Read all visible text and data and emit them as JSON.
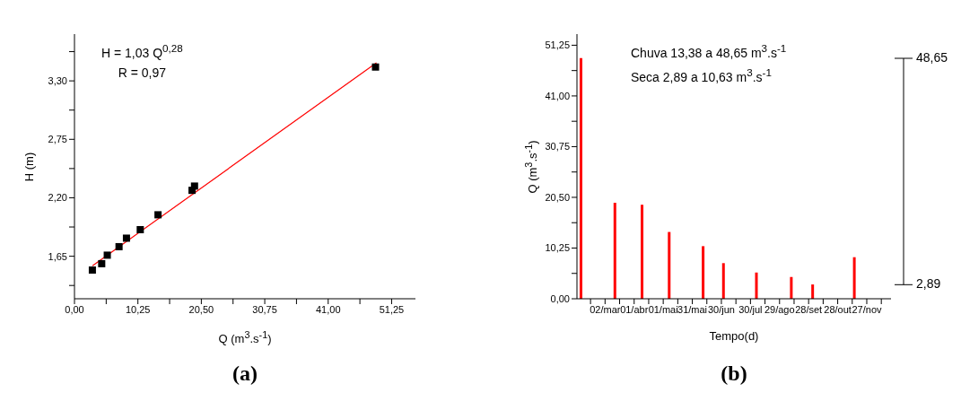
{
  "chart_data": [
    {
      "type": "scatter",
      "title": "(a)",
      "xlabel": "Q (m$^{3}$.s$^{-1}$)",
      "ylabel": "H (m)",
      "annotations": [
        "H = 1,03 Q$^{0,28}$",
        "R = 0,97"
      ],
      "series": [
        {
          "marker": "square",
          "color": "#000000",
          "x": [
            2.89,
            4.4,
            5.3,
            7.2,
            8.4,
            10.63,
            13.5,
            19.0,
            19.4,
            48.65
          ],
          "values": [
            1.52,
            1.58,
            1.66,
            1.74,
            1.82,
            1.9,
            2.04,
            2.27,
            2.31,
            3.43
          ]
        },
        {
          "type": "line",
          "color": "#ff0000",
          "x": [
            2.91,
            48.8
          ],
          "values": [
            1.56,
            3.47
          ]
        }
      ],
      "xlim": [
        0,
        55.1
      ],
      "ylim": [
        1.25,
        3.74
      ],
      "xticks": [
        {
          "value": 0,
          "label": "0,00"
        },
        {
          "value": 5.125,
          "label": null
        },
        {
          "value": 10.25,
          "label": "10,25"
        },
        {
          "value": 15.375,
          "label": null
        },
        {
          "value": 20.5,
          "label": "20,50"
        },
        {
          "value": 25.625,
          "label": null
        },
        {
          "value": 30.75,
          "label": "30,75"
        },
        {
          "value": 35.875,
          "label": null
        },
        {
          "value": 41,
          "label": "41,00"
        },
        {
          "value": 46.125,
          "label": null
        },
        {
          "value": 51.25,
          "label": "51,25"
        }
      ],
      "yticks": [
        {
          "value": 1.375,
          "label": null
        },
        {
          "value": 1.65,
          "label": "1,65"
        },
        {
          "value": 1.925,
          "label": null
        },
        {
          "value": 2.2,
          "label": "2,20"
        },
        {
          "value": 2.475,
          "label": null
        },
        {
          "value": 2.75,
          "label": "2,75"
        },
        {
          "value": 3.025,
          "label": null
        },
        {
          "value": 3.3,
          "label": "3,30"
        },
        {
          "value": 3.575,
          "label": null
        }
      ]
    },
    {
      "type": "bar",
      "title": "(b)",
      "xlabel": "Tempo(d)",
      "ylabel": "Q (m$^{3}$.s$^{-1}$)",
      "annotations": [
        "Chuva 13,38 a 48,65 m$^{3}$.s$^{-1}$",
        "Seca 2,89 a 10,63 m$^{3}$.s$^{-1}$"
      ],
      "ref_lines": [
        {
          "axis": "y",
          "value": 48.65,
          "label": "48,65"
        },
        {
          "axis": "y",
          "value": 2.89,
          "label": "2,89"
        }
      ],
      "x": [
        "--02-05",
        "--03-12",
        "--04-09",
        "--05-07",
        "--06-11",
        "--07-02",
        "--08-05",
        "--09-10",
        "--10-02",
        "--11-14"
      ],
      "values": [
        48.65,
        19.4,
        19.0,
        13.5,
        10.63,
        7.2,
        5.3,
        4.4,
        2.89,
        8.4
      ],
      "color": "#ff0000",
      "xlim": [
        "--02-01",
        "--12-22"
      ],
      "ylim": [
        0,
        53.5
      ],
      "xticks": [
        {
          "value": "--02-15",
          "label": null
        },
        {
          "value": "--03-02",
          "label": "02/mar"
        },
        {
          "value": "--03-17",
          "label": null
        },
        {
          "value": "--04-01",
          "label": "01/abr"
        },
        {
          "value": "--04-16",
          "label": null
        },
        {
          "value": "--05-01",
          "label": "01/mai"
        },
        {
          "value": "--05-16",
          "label": null
        },
        {
          "value": "--05-31",
          "label": "31/mai"
        },
        {
          "value": "--06-15",
          "label": null
        },
        {
          "value": "--06-30",
          "label": "30/jun"
        },
        {
          "value": "--07-15",
          "label": null
        },
        {
          "value": "--07-30",
          "label": "30/jul"
        },
        {
          "value": "--08-14",
          "label": null
        },
        {
          "value": "--08-29",
          "label": "29/ago"
        },
        {
          "value": "--09-13",
          "label": null
        },
        {
          "value": "--09-28",
          "label": "28/set"
        },
        {
          "value": "--10-13",
          "label": null
        },
        {
          "value": "--10-28",
          "label": "28/out"
        },
        {
          "value": "--11-12",
          "label": null
        },
        {
          "value": "--11-27",
          "label": "27/nov"
        },
        {
          "value": "--12-12",
          "label": null
        }
      ],
      "yticks": [
        {
          "value": 0,
          "label": "0,00"
        },
        {
          "value": 5.125,
          "label": null
        },
        {
          "value": 10.25,
          "label": "10,25"
        },
        {
          "value": 15.375,
          "label": null
        },
        {
          "value": 20.5,
          "label": "20,50"
        },
        {
          "value": 25.625,
          "label": null
        },
        {
          "value": 30.75,
          "label": "30,75"
        },
        {
          "value": 35.875,
          "label": null
        },
        {
          "value": 41,
          "label": "41,00"
        },
        {
          "value": 46.125,
          "label": null
        },
        {
          "value": 51.25,
          "label": "51,25"
        }
      ]
    }
  ]
}
